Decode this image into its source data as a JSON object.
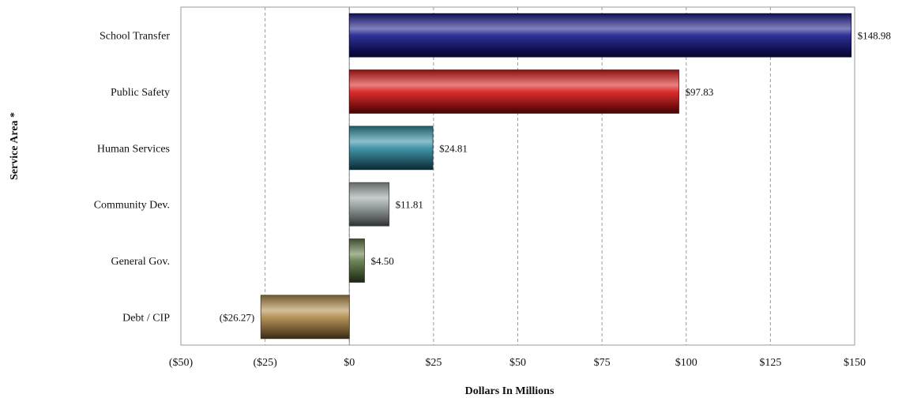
{
  "chart_data": {
    "type": "bar",
    "orientation": "horizontal",
    "title": "",
    "xlabel": "Dollars In Millions",
    "ylabel": "Service Area *",
    "xlim": [
      -50,
      150
    ],
    "x_ticks": [
      -50,
      -25,
      0,
      25,
      50,
      75,
      100,
      125,
      150
    ],
    "x_tick_labels": [
      "($50)",
      "($25)",
      "$0",
      "$25",
      "$50",
      "$75",
      "$100",
      "$125",
      "$150"
    ],
    "grid": "vertical-dashed",
    "categories": [
      "School Transfer",
      "Public Safety",
      "Human Services",
      "Community Dev.",
      "General Gov.",
      "Debt / CIP"
    ],
    "values": [
      148.98,
      97.83,
      24.81,
      11.81,
      4.5,
      -26.27
    ],
    "value_labels": [
      "$148.98",
      "$97.83",
      "$24.81",
      "$11.81",
      "$4.50",
      "($26.27)"
    ],
    "colors": [
      "#1a1a8c",
      "#d81818",
      "#2f8aa0",
      "#9aa3a3",
      "#5f7a45",
      "#b08a4a"
    ]
  }
}
